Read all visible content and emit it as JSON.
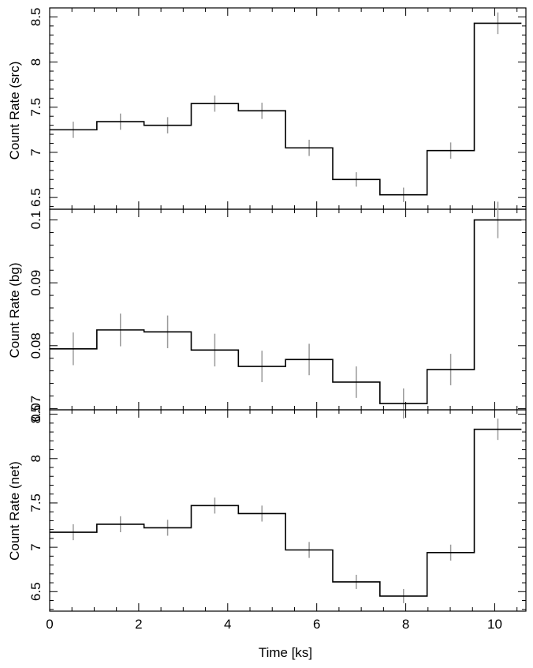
{
  "chart_data": [
    {
      "type": "line",
      "drawstyle": "steps",
      "ylabel": "Count Rate (src)",
      "xlim": [
        0,
        10.7
      ],
      "ylim": [
        6.37,
        8.6
      ],
      "yticks": [
        6.5,
        7,
        7.5,
        8,
        8.5
      ],
      "ytick_labels": [
        "6.5",
        "7",
        "7.5",
        "8",
        "8.5"
      ],
      "bin_edges": [
        0,
        1.06,
        2.12,
        3.18,
        4.24,
        5.3,
        6.36,
        7.42,
        8.48,
        9.54,
        10.6
      ],
      "x": [
        0.53,
        1.59,
        2.65,
        3.71,
        4.77,
        5.83,
        6.89,
        7.95,
        9.01,
        10.07
      ],
      "y": [
        7.25,
        7.34,
        7.3,
        7.54,
        7.46,
        7.05,
        6.7,
        6.53,
        7.02,
        8.43
      ],
      "yerr": [
        0.09,
        0.09,
        0.09,
        0.09,
        0.09,
        0.09,
        0.08,
        0.08,
        0.09,
        0.12
      ]
    },
    {
      "type": "line",
      "drawstyle": "steps",
      "ylabel": "Count Rate (bg)",
      "xlim": [
        0,
        10.7
      ],
      "ylim": [
        0.0698,
        0.1017
      ],
      "yticks": [
        0.07,
        0.08,
        0.09,
        0.1
      ],
      "ytick_labels": [
        "0.07",
        "0.08",
        "0.09",
        "0.1"
      ],
      "bin_edges": [
        0,
        1.06,
        2.12,
        3.18,
        4.24,
        5.3,
        6.36,
        7.42,
        8.48,
        9.54,
        10.6
      ],
      "x": [
        0.53,
        1.59,
        2.65,
        3.71,
        4.77,
        5.83,
        6.89,
        7.95,
        9.01,
        10.07
      ],
      "y": [
        0.0795,
        0.0825,
        0.0822,
        0.0793,
        0.0767,
        0.0778,
        0.0742,
        0.0708,
        0.0762,
        0.1
      ],
      "yerr": [
        0.0026,
        0.0026,
        0.0026,
        0.0026,
        0.0025,
        0.0025,
        0.0025,
        0.0024,
        0.0025,
        0.0029
      ]
    },
    {
      "type": "line",
      "drawstyle": "steps",
      "ylabel": "Count Rate (net)",
      "xlabel": "Time [ks]",
      "xlim": [
        0,
        10.7
      ],
      "ylim": [
        6.28,
        8.55
      ],
      "xticks": [
        0,
        2,
        4,
        6,
        8,
        10
      ],
      "xtick_labels": [
        "0",
        "2",
        "4",
        "6",
        "8",
        "10"
      ],
      "yticks": [
        6.5,
        7,
        7.5,
        8,
        8.5
      ],
      "ytick_labels": [
        "6.5",
        "7",
        "7.5",
        "8",
        "8.5"
      ],
      "bin_edges": [
        0,
        1.06,
        2.12,
        3.18,
        4.24,
        5.3,
        6.36,
        7.42,
        8.48,
        9.54,
        10.6
      ],
      "x": [
        0.53,
        1.59,
        2.65,
        3.71,
        4.77,
        5.83,
        6.89,
        7.95,
        9.01,
        10.07
      ],
      "y": [
        7.17,
        7.26,
        7.22,
        7.47,
        7.38,
        6.97,
        6.61,
        6.45,
        6.94,
        8.33
      ],
      "yerr": [
        0.09,
        0.09,
        0.09,
        0.09,
        0.09,
        0.09,
        0.08,
        0.08,
        0.09,
        0.12
      ]
    }
  ],
  "colors": {
    "step_line": "#000000",
    "error_bar": "#9a9a9a",
    "axes": "#000000",
    "background": "#ffffff"
  }
}
